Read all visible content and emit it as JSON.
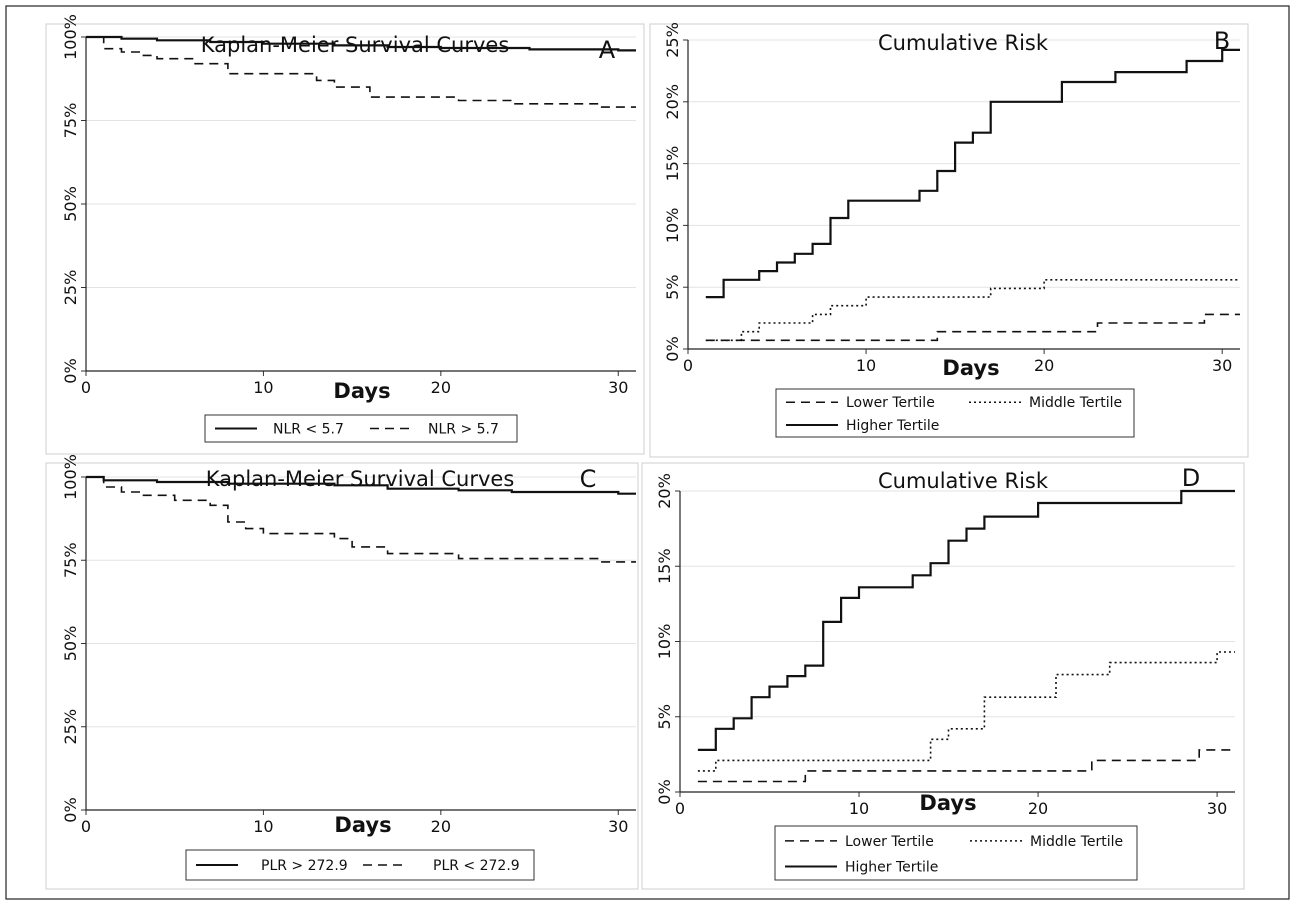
{
  "chart_data": [
    {
      "type": "line",
      "panel": "A",
      "title": "Kaplan-Meier Survival Curves",
      "xlabel": "Days",
      "ylabel": "",
      "xlim": [
        0,
        31
      ],
      "ylim": [
        0,
        100
      ],
      "x_ticks": [
        "0",
        "10",
        "20",
        "30"
      ],
      "y_ticks": [
        "0%",
        "25%",
        "50%",
        "75%",
        "100%"
      ],
      "grid": true,
      "legend": "bottom",
      "series": [
        {
          "name": "NLR < 5.7",
          "style": "solid",
          "x": [
            0,
            2,
            4,
            7,
            10,
            14,
            17,
            20,
            25,
            30,
            31
          ],
          "y": [
            100,
            99.5,
            99,
            98.5,
            98,
            97.5,
            97,
            96.7,
            96.3,
            96,
            96
          ]
        },
        {
          "name": "NLR > 5.7",
          "style": "dashed",
          "x": [
            0,
            1,
            2,
            3,
            4,
            6,
            8,
            13,
            14,
            16,
            21,
            24,
            29,
            31
          ],
          "y": [
            100,
            96.5,
            95.5,
            94.5,
            93.5,
            92,
            89,
            87,
            85,
            82,
            81,
            80,
            79,
            79
          ]
        }
      ]
    },
    {
      "type": "line",
      "panel": "B",
      "title": "Cumulative Risk",
      "xlabel": "Days",
      "ylabel": "",
      "xlim": [
        0,
        31
      ],
      "ylim": [
        0,
        25
      ],
      "x_ticks": [
        "0",
        "10",
        "20",
        "30"
      ],
      "y_ticks": [
        "0%",
        "5%",
        "10%",
        "15%",
        "20%",
        "25%"
      ],
      "grid": true,
      "legend": "bottom",
      "series": [
        {
          "name": "Lower Tertile",
          "style": "dashed",
          "x": [
            1,
            14,
            23,
            29,
            31
          ],
          "y": [
            0.7,
            1.4,
            2.1,
            2.8,
            2.8
          ]
        },
        {
          "name": "Middle Tertile",
          "style": "dotted",
          "x": [
            1,
            3,
            4,
            7,
            8,
            10,
            17,
            20,
            31
          ],
          "y": [
            0.7,
            1.4,
            2.1,
            2.8,
            3.5,
            4.2,
            4.9,
            5.6,
            5.6
          ]
        },
        {
          "name": "Higher Tertile",
          "style": "solid",
          "x": [
            1,
            2,
            4,
            5,
            6,
            7,
            8,
            9,
            13,
            14,
            15,
            16,
            17,
            21,
            24,
            28,
            30,
            31
          ],
          "y": [
            4.2,
            5.6,
            6.3,
            7.0,
            7.7,
            8.5,
            10.6,
            12.0,
            12.8,
            14.4,
            16.7,
            17.5,
            20.0,
            21.6,
            22.4,
            23.3,
            24.2,
            24.2
          ]
        }
      ]
    },
    {
      "type": "line",
      "panel": "C",
      "title": "Kaplan-Meier Survival Curves",
      "xlabel": "Days",
      "ylabel": "",
      "xlim": [
        0,
        31
      ],
      "ylim": [
        0,
        100
      ],
      "x_ticks": [
        "0",
        "10",
        "20",
        "30"
      ],
      "y_ticks": [
        "0%",
        "25%",
        "50%",
        "75%",
        "100%"
      ],
      "grid": true,
      "legend": "bottom",
      "series": [
        {
          "name": "PLR > 272.9",
          "style": "solid",
          "x": [
            0,
            1,
            4,
            8,
            14,
            17,
            21,
            24,
            30,
            31
          ],
          "y": [
            100,
            99,
            98.5,
            98,
            97.5,
            96.5,
            96,
            95.5,
            95,
            95
          ]
        },
        {
          "name": "PLR < 272.9",
          "style": "dashed",
          "x": [
            0,
            1,
            2,
            3,
            5,
            7,
            8,
            9,
            10,
            14,
            15,
            17,
            21,
            29,
            31
          ],
          "y": [
            100,
            97,
            95.5,
            94.5,
            93,
            91.5,
            86.5,
            84.5,
            83,
            81.5,
            79,
            77,
            75.5,
            74.5,
            74.5
          ]
        }
      ]
    },
    {
      "type": "line",
      "panel": "D",
      "title": "Cumulative Risk",
      "xlabel": "Days",
      "ylabel": "",
      "xlim": [
        0,
        31
      ],
      "ylim": [
        0,
        20
      ],
      "x_ticks": [
        "0",
        "10",
        "20",
        "30"
      ],
      "y_ticks": [
        "0%",
        "5%",
        "10%",
        "15%",
        "20%"
      ],
      "grid": true,
      "legend": "bottom",
      "series": [
        {
          "name": "Lower Tertile",
          "style": "dashed",
          "x": [
            1,
            7,
            23,
            29,
            31
          ],
          "y": [
            0.7,
            1.4,
            2.1,
            2.8,
            2.8
          ]
        },
        {
          "name": "Middle Tertile",
          "style": "dotted",
          "x": [
            1,
            2,
            14,
            15,
            17,
            21,
            24,
            30,
            31
          ],
          "y": [
            1.4,
            2.1,
            3.5,
            4.2,
            6.3,
            7.8,
            8.6,
            9.3,
            9.3
          ]
        },
        {
          "name": "Higher Tertile",
          "style": "solid",
          "x": [
            1,
            2,
            3,
            4,
            5,
            6,
            7,
            8,
            9,
            10,
            13,
            14,
            15,
            16,
            17,
            20,
            28,
            31
          ],
          "y": [
            2.8,
            4.2,
            4.9,
            6.3,
            7.0,
            7.7,
            8.4,
            11.3,
            12.9,
            13.6,
            14.4,
            15.2,
            16.7,
            17.5,
            18.3,
            19.2,
            20.0,
            20.0
          ]
        }
      ]
    }
  ],
  "panel_labels": [
    "A",
    "B",
    "C",
    "D"
  ]
}
